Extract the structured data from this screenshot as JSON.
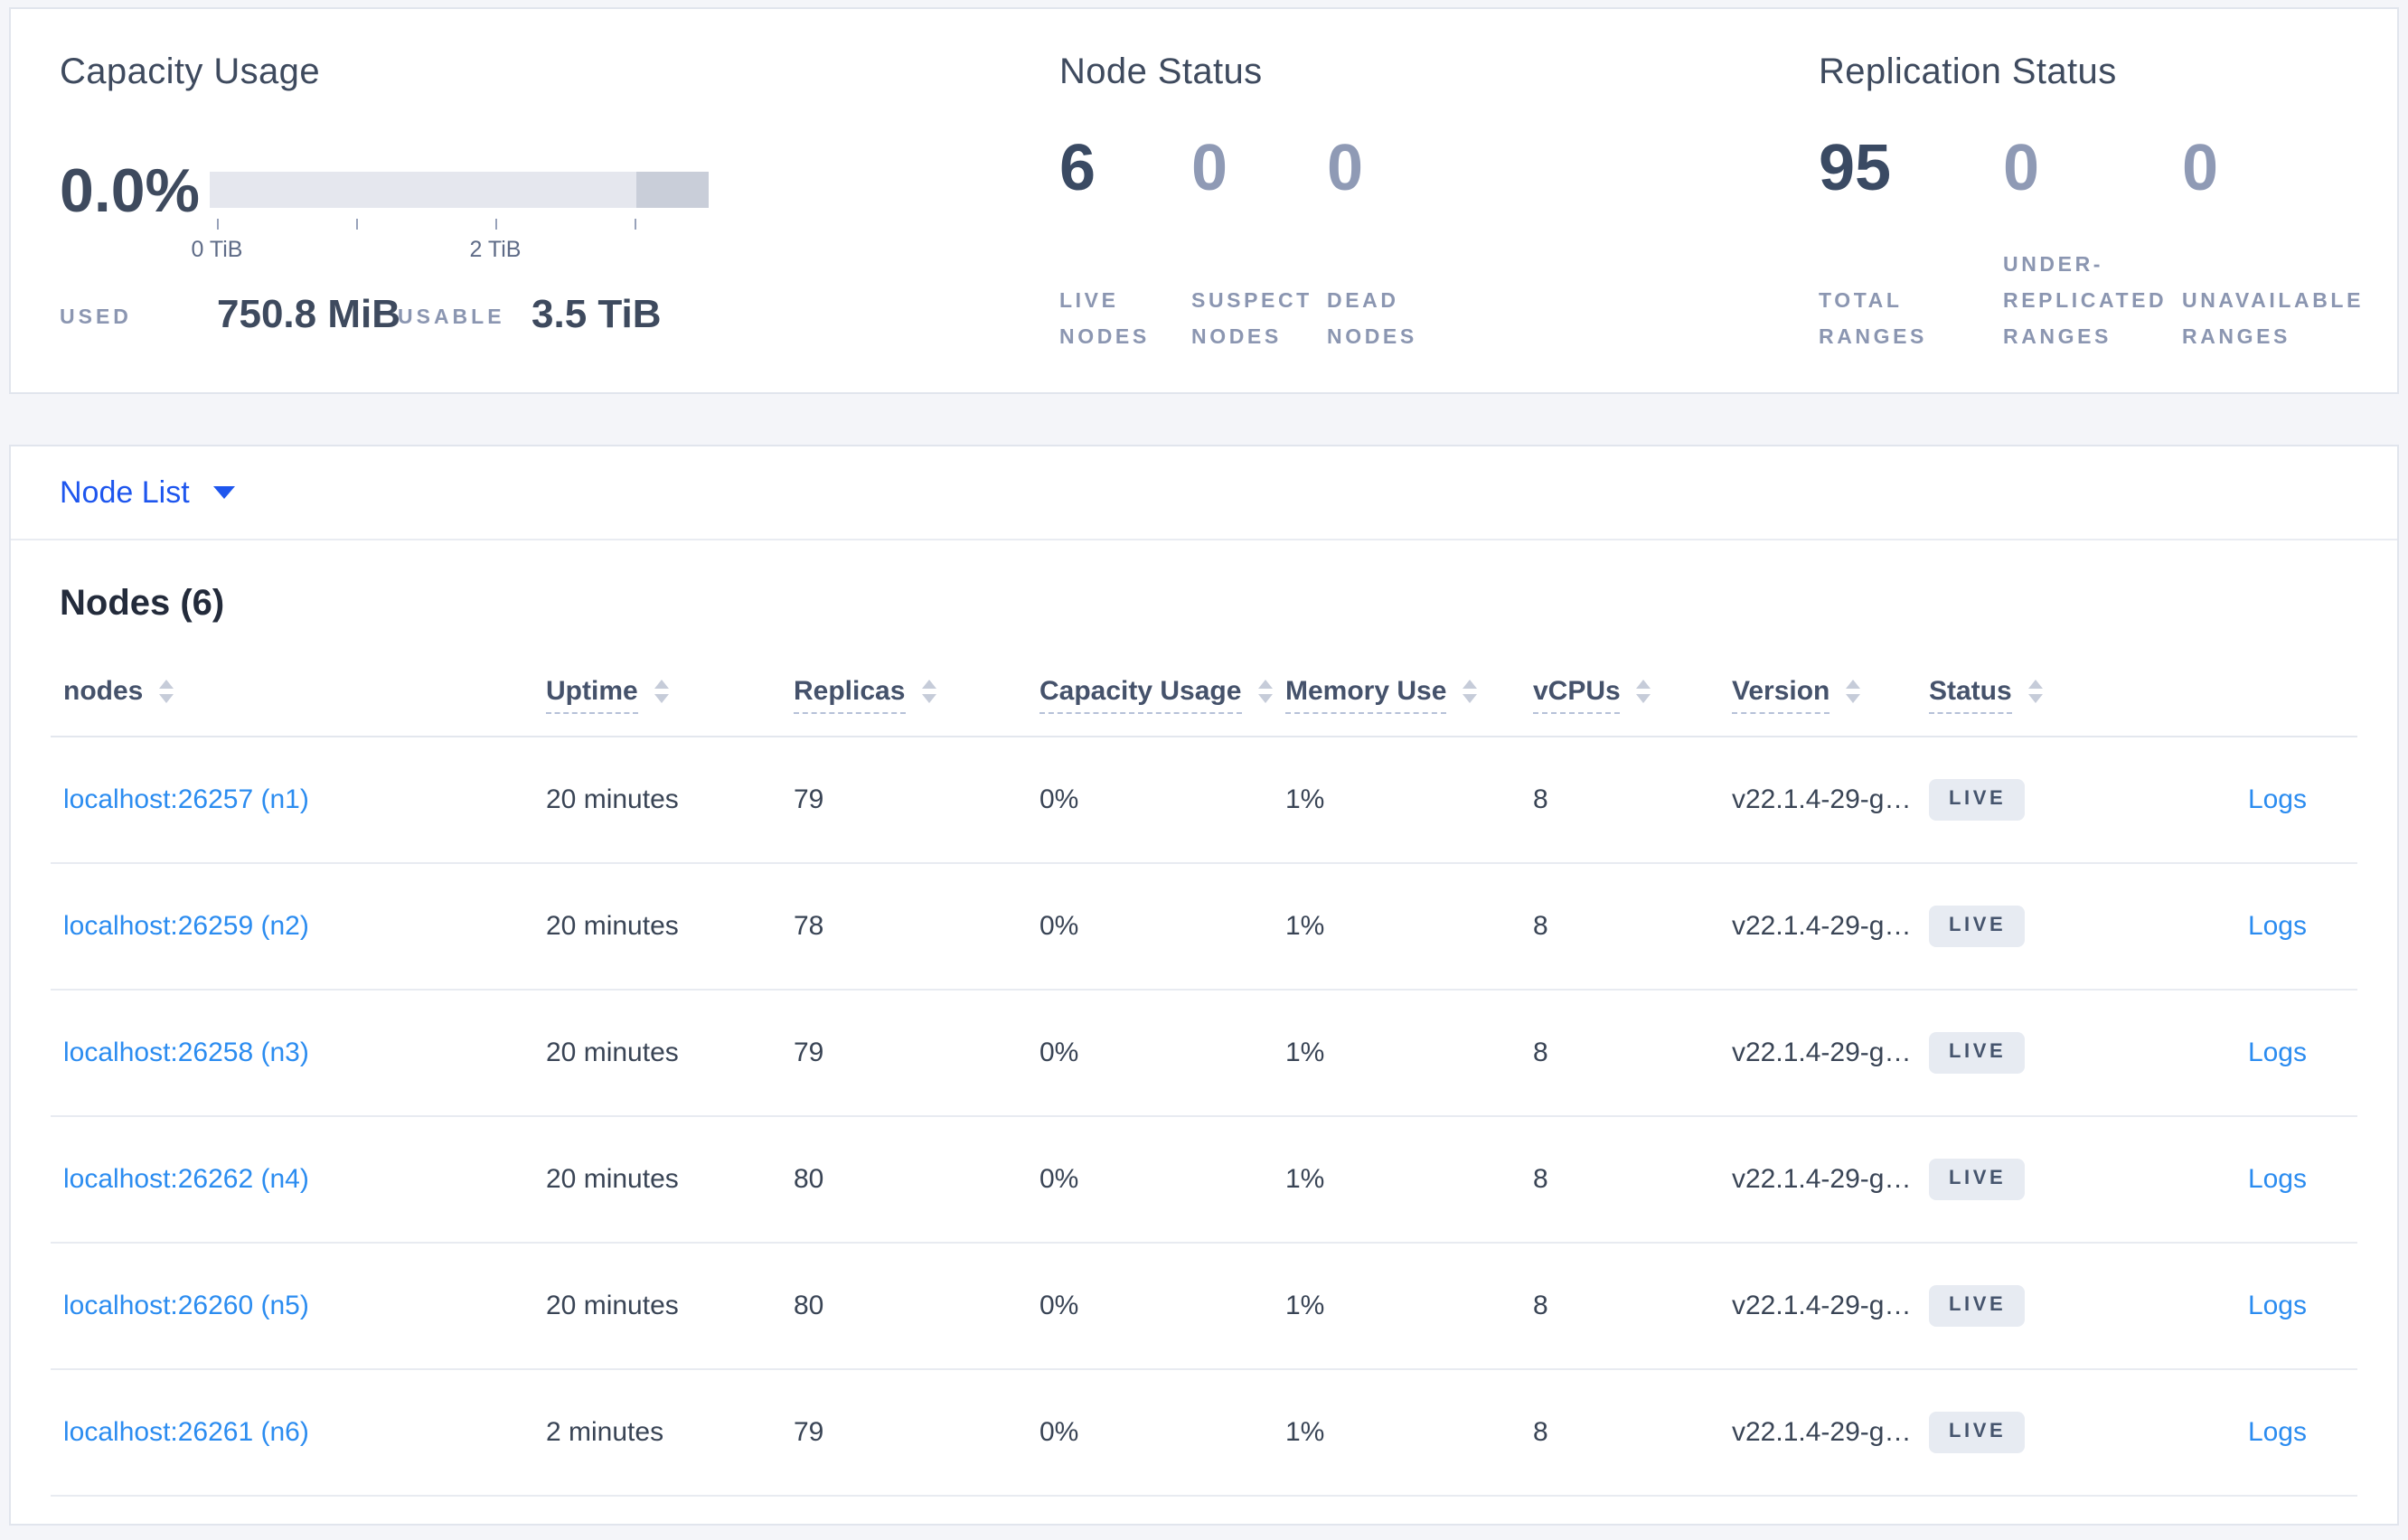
{
  "colors": {
    "page_bg": "#f4f5f9",
    "card_border": "#e1e5ed",
    "heading": "#3e4a5e",
    "stat_dark": "#3a4a63",
    "stat_muted": "#8f9ab5",
    "muted_label": "#8b96b1",
    "bar_light": "#e5e7ee",
    "bar_dark": "#c9ced9",
    "deep_blue": "#1e56ee",
    "link_blue": "#2b8cf0",
    "header_text": "#45526b",
    "cell_text": "#394455",
    "badge_bg": "#e7ebf2",
    "badge_text": "#45546d"
  },
  "capacity": {
    "title": "Capacity Usage",
    "percent": "0.0%",
    "tick_labels": [
      "0 TiB",
      "2 TiB"
    ],
    "used_label": "USED",
    "used_value": "750.8 MiB",
    "usable_label": "USABLE",
    "usable_value": "3.5 TiB"
  },
  "node_status": {
    "title": "Node Status",
    "stats": [
      {
        "value": "6",
        "label": "LIVE NODES",
        "muted": false
      },
      {
        "value": "0",
        "label": "SUSPECT NODES",
        "muted": true
      },
      {
        "value": "0",
        "label": "DEAD NODES",
        "muted": true
      }
    ]
  },
  "replication": {
    "title": "Replication Status",
    "stats": [
      {
        "value": "95",
        "label": "TOTAL RANGES",
        "muted": false
      },
      {
        "value": "0",
        "label": "UNDER-REPLICATED RANGES",
        "muted": true
      },
      {
        "value": "0",
        "label": "UNAVAILABLE RANGES",
        "muted": true
      }
    ]
  },
  "node_list": {
    "toggle_label": "Node List",
    "heading": "Nodes (6)"
  },
  "table": {
    "columns": [
      {
        "key": "nodes",
        "label": "nodes",
        "underline": false
      },
      {
        "key": "uptime",
        "label": "Uptime",
        "underline": true
      },
      {
        "key": "replicas",
        "label": "Replicas",
        "underline": true
      },
      {
        "key": "capacity-usage",
        "label": "Capacity Usage",
        "underline": true
      },
      {
        "key": "memory-use",
        "label": "Memory Use",
        "underline": true
      },
      {
        "key": "vcpus",
        "label": "vCPUs",
        "underline": true
      },
      {
        "key": "version",
        "label": "Version",
        "underline": true
      },
      {
        "key": "status",
        "label": "Status",
        "underline": true
      }
    ],
    "logs_label": "Logs",
    "rows": [
      {
        "node": "localhost:26257 (n1)",
        "uptime": "20 minutes",
        "replicas": "79",
        "capacity": "0%",
        "memory": "1%",
        "vcpus": "8",
        "version": "v22.1.4-29-g…",
        "status": "LIVE"
      },
      {
        "node": "localhost:26259 (n2)",
        "uptime": "20 minutes",
        "replicas": "78",
        "capacity": "0%",
        "memory": "1%",
        "vcpus": "8",
        "version": "v22.1.4-29-g…",
        "status": "LIVE"
      },
      {
        "node": "localhost:26258 (n3)",
        "uptime": "20 minutes",
        "replicas": "79",
        "capacity": "0%",
        "memory": "1%",
        "vcpus": "8",
        "version": "v22.1.4-29-g…",
        "status": "LIVE"
      },
      {
        "node": "localhost:26262 (n4)",
        "uptime": "20 minutes",
        "replicas": "80",
        "capacity": "0%",
        "memory": "1%",
        "vcpus": "8",
        "version": "v22.1.4-29-g…",
        "status": "LIVE"
      },
      {
        "node": "localhost:26260 (n5)",
        "uptime": "20 minutes",
        "replicas": "80",
        "capacity": "0%",
        "memory": "1%",
        "vcpus": "8",
        "version": "v22.1.4-29-g…",
        "status": "LIVE"
      },
      {
        "node": "localhost:26261 (n6)",
        "uptime": "2 minutes",
        "replicas": "79",
        "capacity": "0%",
        "memory": "1%",
        "vcpus": "8",
        "version": "v22.1.4-29-g…",
        "status": "LIVE"
      }
    ]
  }
}
